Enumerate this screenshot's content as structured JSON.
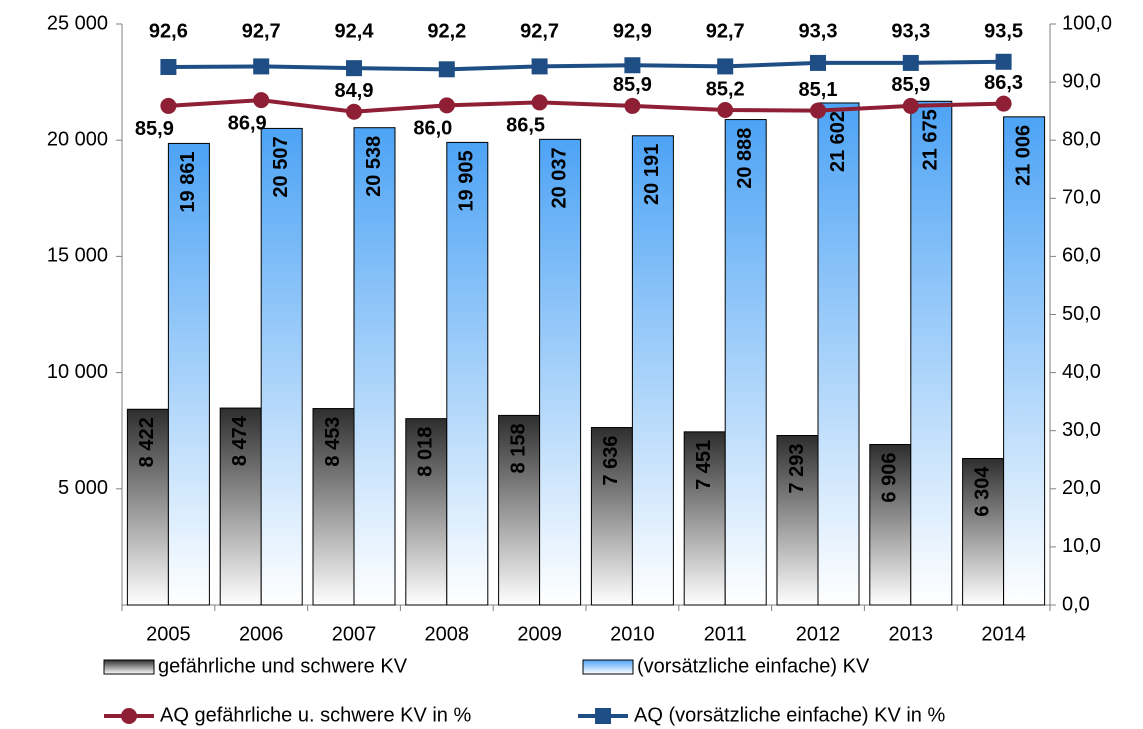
{
  "chart_data": {
    "type": "bar_line",
    "categories": [
      "2005",
      "2006",
      "2007",
      "2008",
      "2009",
      "2010",
      "2011",
      "2012",
      "2013",
      "2014"
    ],
    "ylim": [
      0,
      25000
    ],
    "yticks": [
      {
        "value": 5000,
        "label": "5 000"
      },
      {
        "value": 10000,
        "label": "10 000"
      },
      {
        "value": 15000,
        "label": "15 000"
      },
      {
        "value": 20000,
        "label": "20 000"
      },
      {
        "value": 25000,
        "label": "25 000"
      }
    ],
    "y2lim": [
      0,
      100
    ],
    "y2ticks": [
      {
        "value": 0,
        "label": "0,0"
      },
      {
        "value": 10,
        "label": "10,0"
      },
      {
        "value": 20,
        "label": "20,0"
      },
      {
        "value": 30,
        "label": "30,0"
      },
      {
        "value": 40,
        "label": "40,0"
      },
      {
        "value": 50,
        "label": "50,0"
      },
      {
        "value": 60,
        "label": "60,0"
      },
      {
        "value": 70,
        "label": "70,0"
      },
      {
        "value": 80,
        "label": "80,0"
      },
      {
        "value": 90,
        "label": "90,0"
      },
      {
        "value": 100,
        "label": "100,0"
      }
    ],
    "series": [
      {
        "name": "gefährliche und schwere KV",
        "type": "bar",
        "color": "#2e2e2e",
        "values": [
          8422,
          8474,
          8453,
          8018,
          8158,
          7636,
          7451,
          7293,
          6906,
          6304
        ],
        "value_labels": [
          "8 422",
          "8 474",
          "8 453",
          "8 018",
          "8 158",
          "7 636",
          "7 451",
          "7 293",
          "6 906",
          "6 304"
        ]
      },
      {
        "name": "(vorsätzliche einfache) KV",
        "type": "bar",
        "color": "#4da3f5",
        "values": [
          19861,
          20507,
          20538,
          19905,
          20037,
          20191,
          20888,
          21602,
          21675,
          21006
        ],
        "value_labels": [
          "19 861",
          "20 507",
          "20 538",
          "19 905",
          "20 037",
          "20 191",
          "20 888",
          "21 602",
          "21 675",
          "21 006"
        ]
      },
      {
        "name": "AQ gefährliche u. schwere KV in %",
        "type": "line",
        "axis": "y2",
        "color": "#8e1f35",
        "values": [
          85.9,
          86.9,
          84.9,
          86.0,
          86.5,
          85.9,
          85.2,
          85.1,
          85.9,
          86.3
        ],
        "value_labels": [
          "85,9",
          "86,9",
          "84,9",
          "86,0",
          "86,5",
          "85,9",
          "85,2",
          "85,1",
          "85,9",
          "86,3"
        ]
      },
      {
        "name": "AQ (vorsätzliche einfache) KV in %",
        "type": "line",
        "axis": "y2",
        "color": "#1f4e85",
        "values": [
          92.6,
          92.7,
          92.4,
          92.2,
          92.7,
          92.9,
          92.7,
          93.3,
          93.3,
          93.5
        ],
        "value_labels": [
          "92,6",
          "92,7",
          "92,4",
          "92,2",
          "92,7",
          "92,9",
          "92,7",
          "93,3",
          "93,3",
          "93,5"
        ]
      }
    ]
  }
}
